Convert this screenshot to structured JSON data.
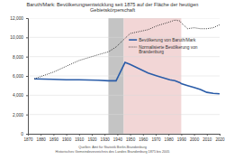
{
  "chart_data": {
    "type": "line",
    "title": "Baruth/Mark: Bevölkerungsentwicklung seit 1875 auf der Fläche der heutigen Gebietskörperschaft",
    "x": [
      1875,
      1890,
      1900,
      1910,
      1925,
      1933,
      1939,
      1946,
      1950,
      1964,
      1971,
      1981,
      1985,
      1989,
      1990,
      1995,
      2000,
      2005,
      2010,
      2015,
      2020
    ],
    "series": [
      {
        "name": "Bevölkerung von Baruth/Mark",
        "color": "#2a5ca8",
        "line_style": "solid",
        "values": [
          5700,
          5650,
          5600,
          5600,
          5550,
          5500,
          5500,
          7400,
          7200,
          6300,
          6000,
          5600,
          5500,
          5300,
          5200,
          5000,
          4800,
          4600,
          4300,
          4200,
          4150
        ]
      },
      {
        "name": "Normalisierte Bevölkerung von Brandenburg",
        "color": "#222222",
        "line_style": "dotted",
        "values": [
          5700,
          6400,
          7000,
          7600,
          8200,
          8500,
          9000,
          9900,
          10400,
          10800,
          11200,
          11600,
          11800,
          11700,
          11500,
          10900,
          11000,
          10900,
          10900,
          11000,
          11300
        ]
      }
    ],
    "shaded_periods": [
      {
        "x0": 1933,
        "x1": 1945,
        "color": "#c4c4c4"
      },
      {
        "x0": 1945,
        "x1": 1990,
        "color": "#f2d6d6"
      }
    ],
    "xlim": [
      1870,
      2020
    ],
    "xticks": [
      1870,
      1880,
      1890,
      1900,
      1910,
      1920,
      1930,
      1940,
      1950,
      1960,
      1970,
      1980,
      1990,
      2000,
      2010,
      2020
    ],
    "ylim": [
      0,
      12000
    ],
    "yticks": [
      0,
      {
        "value": 2000,
        "label": "2,000"
      },
      {
        "value": 4000,
        "label": "4,000"
      },
      {
        "value": 6000,
        "label": "6,000"
      },
      {
        "value": 8000,
        "label": "8,000"
      },
      {
        "value": 10000,
        "label": "10,000"
      },
      {
        "value": 12000,
        "label": "12,000"
      }
    ],
    "grid": true,
    "legend": "right",
    "notes": [
      "Quellen: Amt für Statistik Berlin-Brandenburg",
      "Historisches Gemeindeverzeichnis des Landes Brandenburg 1875 bis 2005"
    ]
  }
}
